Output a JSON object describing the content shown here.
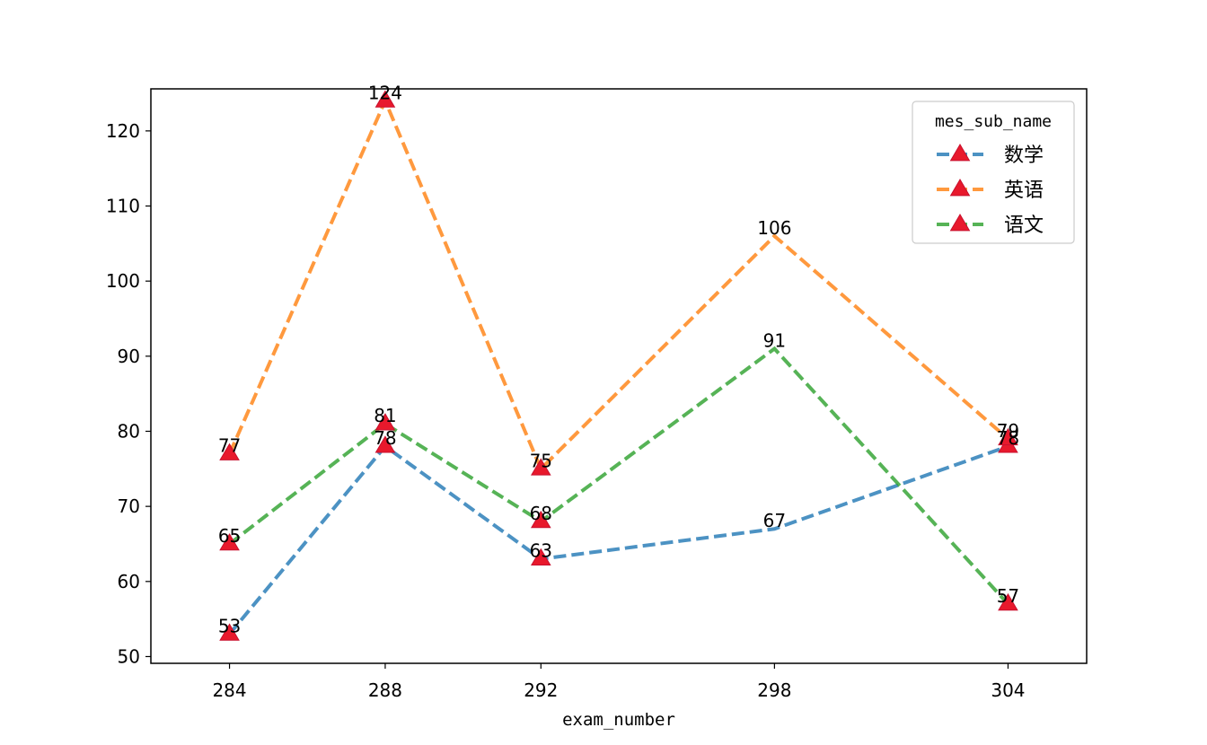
{
  "chart_data": {
    "type": "line",
    "x": [
      "284",
      "288",
      "292",
      "298",
      "304"
    ],
    "x_positions": [
      284,
      288,
      292,
      298,
      304
    ],
    "xlabel": "exam_number",
    "ylabel": "",
    "ylim": [
      49.1,
      125.6
    ],
    "yticks": [
      50,
      60,
      70,
      80,
      90,
      100,
      110,
      120
    ],
    "grid": false,
    "legend": {
      "title": "mes_sub_name",
      "placement": "top-right"
    },
    "marker_color": "#e8192c",
    "series": [
      {
        "name": "数学",
        "color": "#1f77b4",
        "values": [
          53,
          78,
          63,
          67,
          78
        ]
      },
      {
        "name": "英语",
        "color": "#ff7f0e",
        "values": [
          77,
          124,
          75,
          106,
          79
        ]
      },
      {
        "name": "语文",
        "color": "#2ca02c",
        "values": [
          65,
          81,
          68,
          91,
          57
        ]
      }
    ]
  }
}
